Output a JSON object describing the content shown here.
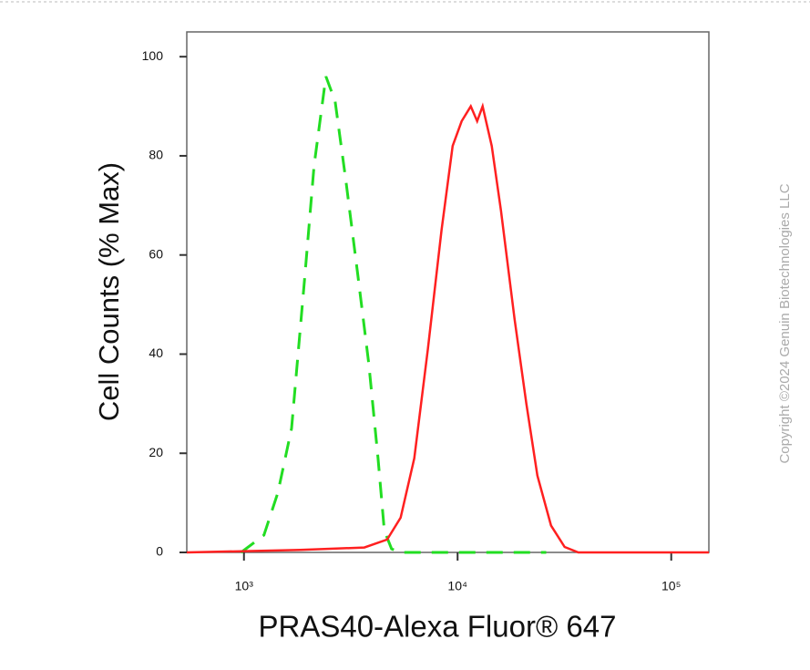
{
  "chart_data": {
    "type": "line",
    "xlabel": "PRAS40-Alexa Fluor® 647",
    "ylabel": "Cell Counts (% Max)",
    "annotation": "Copyright ©2024 Genuin Biotechnologies LLC",
    "xscale": "log",
    "xlim": [
      540,
      150000
    ],
    "ylim": [
      0,
      105
    ],
    "xticks": [
      {
        "value": 1000,
        "label": "10³"
      },
      {
        "value": 10000,
        "label": "10⁴"
      },
      {
        "value": 100000,
        "label": "10⁵"
      }
    ],
    "yticks": [
      0,
      20,
      40,
      60,
      80,
      100
    ],
    "series": [
      {
        "color": "#22dd22",
        "dash": true,
        "x": [
          970,
          1240,
          1440,
          1670,
          1930,
          2130,
          2420,
          2670,
          3000,
          3410,
          3840,
          4240,
          4540,
          4910,
          5410,
          26000
        ],
        "values": [
          0,
          3.5,
          12,
          25,
          56,
          78,
          96,
          91,
          75,
          56,
          38,
          19,
          4.4,
          0.7,
          0,
          0
        ]
      },
      {
        "color": "#ff2020",
        "dash": false,
        "x": [
          540,
          1840,
          3660,
          4680,
          5410,
          6270,
          7260,
          8410,
          9480,
          10450,
          11530,
          12350,
          13100,
          14450,
          15950,
          18480,
          20990,
          23620,
          27370,
          31700,
          36720,
          150000
        ],
        "values": [
          0,
          0.5,
          1,
          2.6,
          7,
          19,
          41,
          65,
          82,
          87,
          90,
          87,
          90,
          82,
          69,
          47,
          30,
          15.5,
          5.4,
          1.1,
          0,
          0
        ]
      }
    ]
  }
}
